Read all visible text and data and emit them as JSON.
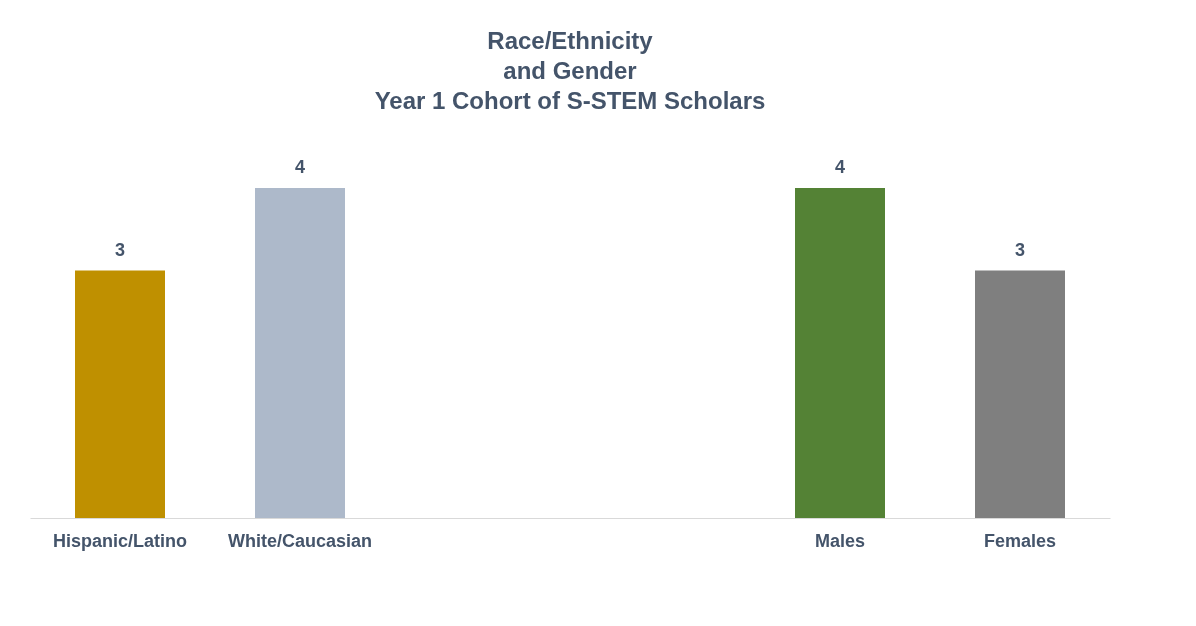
{
  "chart_data": {
    "type": "bar",
    "title": "Race/Ethnicity\nand Gender\nYear 1 Cohort of S-STEM Scholars",
    "categories": [
      "Hispanic/Latino",
      "White/Caucasian",
      null,
      null,
      "Males",
      "Females"
    ],
    "values": [
      3,
      4,
      null,
      null,
      4,
      3
    ],
    "colors": [
      "#bf9000",
      "#adb9ca",
      null,
      null,
      "#548235",
      "#7f7f7f"
    ],
    "data_labels": true
  }
}
